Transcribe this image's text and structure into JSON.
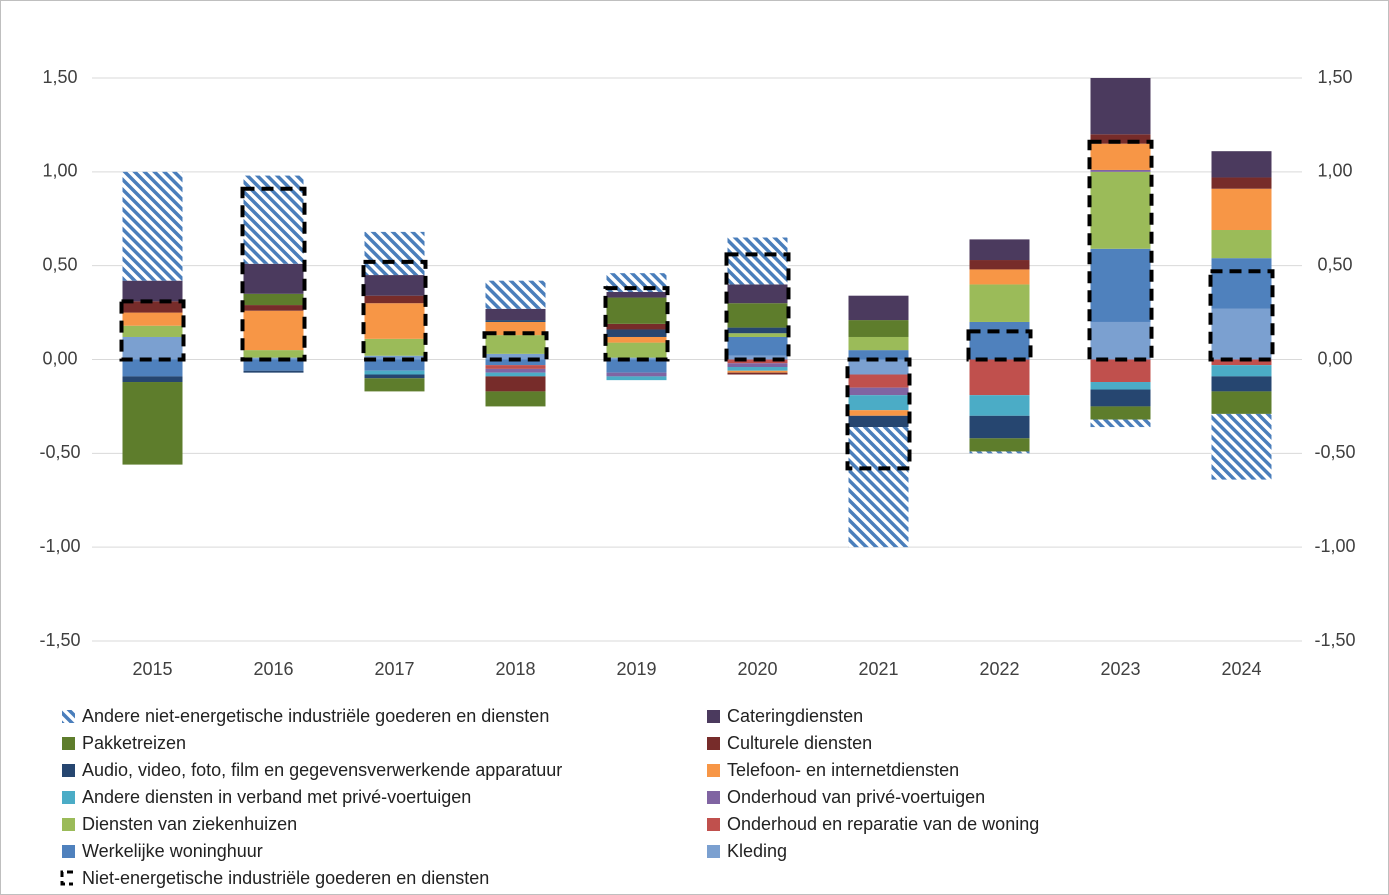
{
  "chart_data": {
    "type": "stacked_bar",
    "categories": [
      "2015",
      "2016",
      "2017",
      "2018",
      "2019",
      "2020",
      "2021",
      "2022",
      "2023",
      "2024"
    ],
    "ylim": [
      -1.5,
      1.5
    ],
    "yticks": [
      {
        "value": -1.5,
        "label": "-1,50"
      },
      {
        "value": -1.0,
        "label": "-1,00"
      },
      {
        "value": -0.5,
        "label": "-0,50"
      },
      {
        "value": 0,
        "label": "0,00"
      },
      {
        "value": 0.5,
        "label": "0,50"
      },
      {
        "value": 1.0,
        "label": "1,00"
      },
      {
        "value": 1.5,
        "label": "1,50"
      }
    ],
    "y2lim": [
      -1.5,
      1.5
    ],
    "y2ticks": [
      {
        "value": -1.5,
        "label": "-1,50"
      },
      {
        "value": -1.0,
        "label": "-1,00"
      },
      {
        "value": -0.5,
        "label": "-0,50"
      },
      {
        "value": 0,
        "label": "0,00"
      },
      {
        "value": 0.5,
        "label": "0,50"
      },
      {
        "value": 1.0,
        "label": "1,00"
      },
      {
        "value": 1.5,
        "label": "1,50"
      }
    ],
    "grid": true,
    "legend": "bottom",
    "series": [
      {
        "name": "Andere niet-energetische industriële goederen en diensten",
        "color": "#4a7ebb",
        "pattern": "hatch",
        "values": [
          0.58,
          0.47,
          0.23,
          0.15,
          0.1,
          0.25,
          -0.64,
          -0.01,
          -0.04,
          -0.35
        ]
      },
      {
        "name": "Cateringdiensten",
        "color": "#4b3a5e",
        "values": [
          0.11,
          0.16,
          0.11,
          0.06,
          0.03,
          0.1,
          0.13,
          0.11,
          0.3,
          0.14
        ]
      },
      {
        "name": "Pakketreizen",
        "color": "#5e7d2c",
        "values": [
          -0.44,
          0.06,
          -0.07,
          -0.08,
          0.14,
          0.13,
          0.09,
          -0.07,
          -0.07,
          -0.12
        ]
      },
      {
        "name": "Culturele diensten",
        "color": "#772c2a",
        "values": [
          0.06,
          0.03,
          0.04,
          -0.08,
          0.03,
          -0.01,
          0,
          0.05,
          0.05,
          0.06
        ]
      },
      {
        "name": "Audio, video, foto, film en gegevensverwerkende apparatuur",
        "color": "#264670",
        "values": [
          -0.03,
          -0.01,
          -0.02,
          0.01,
          0.04,
          0.03,
          -0.06,
          -0.12,
          -0.09,
          -0.08
        ]
      },
      {
        "name": "Telefoon- en internetdiensten",
        "color": "#f79646",
        "values": [
          0.07,
          0.21,
          0.19,
          0.07,
          0.03,
          -0.01,
          -0.03,
          0.08,
          0.14,
          0.22
        ]
      },
      {
        "name": "Andere diensten in verband met privé-voertuigen",
        "color": "#4bacc6",
        "values": [
          0,
          0,
          -0.02,
          -0.02,
          -0.02,
          -0.02,
          -0.08,
          -0.11,
          -0.04,
          -0.06
        ]
      },
      {
        "name": "Onderhoud van privé-voertuigen",
        "color": "#8064a2",
        "values": [
          0,
          0,
          0,
          -0.02,
          -0.02,
          -0.02,
          -0.04,
          0,
          0.01,
          0
        ]
      },
      {
        "name": "Diensten van ziekenhuizen",
        "color": "#9bbb59",
        "values": [
          0.06,
          0.04,
          0.09,
          0.1,
          0.08,
          0.02,
          0.07,
          0.2,
          0.41,
          0.15
        ]
      },
      {
        "name": "Onderhoud en reparatie van de woning",
        "color": "#c0504d",
        "values": [
          0,
          0,
          0,
          -0.02,
          0,
          -0.02,
          -0.07,
          -0.19,
          -0.12,
          -0.03
        ]
      },
      {
        "name": "Werkelijke woninghuur",
        "color": "#4f81bd",
        "values": [
          -0.09,
          -0.06,
          -0.06,
          -0.03,
          -0.07,
          0.1,
          0.05,
          0.2,
          0.39,
          0.27
        ]
      },
      {
        "name": "Kleding",
        "color": "#7ba0d0",
        "values": [
          0.12,
          0.01,
          0.02,
          0.03,
          0.01,
          0.02,
          -0.08,
          0,
          0.2,
          0.27
        ]
      },
      {
        "name": "Niet-energetische industriële goederen en diensten",
        "color": "#000000",
        "style": "dashed",
        "values": [
          0.31,
          0.91,
          0.52,
          0.14,
          0.38,
          0.56,
          -0.58,
          0.15,
          1.16,
          0.47
        ]
      }
    ]
  }
}
